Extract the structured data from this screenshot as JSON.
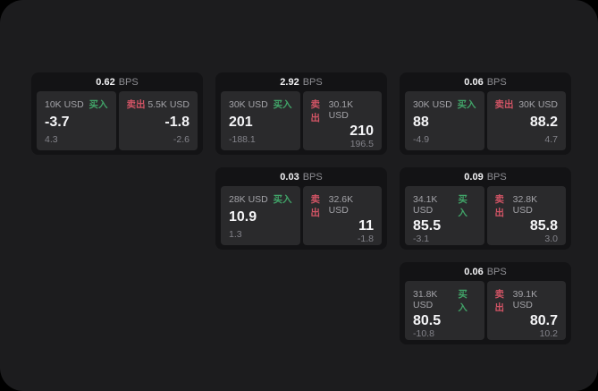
{
  "theme": {
    "outer_background": "#000000",
    "screen_background": "#1c1c1e",
    "card_background": "#131315",
    "panel_background": "#2a2a2c",
    "buy_color": "#41a368",
    "sell_color": "#d15465",
    "value_color": "#f5f5f7",
    "muted_text_color": "#8e8e93"
  },
  "labels": {
    "bps_unit": "BPS",
    "buy": "买入",
    "sell": "卖出"
  },
  "cards": [
    {
      "bps": "0.62",
      "buy": {
        "amount": "10K USD",
        "value": "-3.7",
        "sub_value": "4.3"
      },
      "sell": {
        "amount": "5.5K USD",
        "value": "-1.8",
        "sub_value": "-2.6"
      }
    },
    {
      "bps": "2.92",
      "buy": {
        "amount": "30K USD",
        "value": "201",
        "sub_value": "-188.1"
      },
      "sell": {
        "amount": "30.1K USD",
        "value": "210",
        "sub_value": "196.5"
      }
    },
    {
      "bps": "0.06",
      "buy": {
        "amount": "30K USD",
        "value": "88",
        "sub_value": "-4.9"
      },
      "sell": {
        "amount": "30K USD",
        "value": "88.2",
        "sub_value": "4.7"
      }
    },
    {
      "bps": "0.03",
      "buy": {
        "amount": "28K USD",
        "value": "10.9",
        "sub_value": "1.3"
      },
      "sell": {
        "amount": "32.6K USD",
        "value": "11",
        "sub_value": "-1.8"
      }
    },
    {
      "bps": "0.09",
      "buy": {
        "amount": "34.1K USD",
        "value": "85.5",
        "sub_value": "-3.1"
      },
      "sell": {
        "amount": "32.8K USD",
        "value": "85.8",
        "sub_value": "3.0"
      }
    },
    {
      "bps": "0.06",
      "buy": {
        "amount": "31.8K USD",
        "value": "80.5",
        "sub_value": "-10.8"
      },
      "sell": {
        "amount": "39.1K USD",
        "value": "80.7",
        "sub_value": "10.2"
      }
    }
  ]
}
